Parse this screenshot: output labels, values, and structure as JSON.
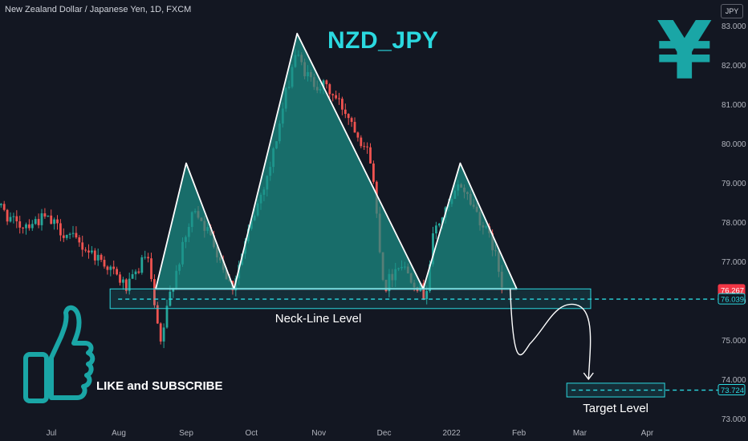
{
  "header": {
    "instrument": "New Zealand Dollar / Japanese Yen, 1D, FXCM",
    "currency_badge": "JPY"
  },
  "overlay": {
    "title": "NZD_JPY",
    "yen_symbol": "¥",
    "like_text": "LIKE and SUBSCRIBE"
  },
  "colors": {
    "background": "#131722",
    "bull": "#26a69a",
    "bear": "#ef5350",
    "pattern_fill": "#1a8f86",
    "accent": "#2bd9e0",
    "current_price_badge": "#f23645"
  },
  "chart_data": {
    "type": "candlestick",
    "title": "NZD_JPY",
    "ylim": [
      73.0,
      83.0
    ],
    "y_ticks": [
      73.0,
      74.0,
      75.0,
      76.0,
      77.0,
      78.0,
      79.0,
      80.0,
      81.0,
      82.0,
      83.0
    ],
    "y_tick_labels": [
      "73.000",
      "74.000",
      "75.000",
      "76.000",
      "77.000",
      "78.000",
      "79.000",
      "80.000",
      "81.000",
      "82.000",
      "83.000"
    ],
    "x_ticks": [
      {
        "label": "Jul",
        "date": "2021-07-01"
      },
      {
        "label": "Aug",
        "date": "2021-08-01"
      },
      {
        "label": "Sep",
        "date": "2021-09-01"
      },
      {
        "label": "Oct",
        "date": "2021-10-01"
      },
      {
        "label": "Nov",
        "date": "2021-11-01"
      },
      {
        "label": "Dec",
        "date": "2021-12-01"
      },
      {
        "label": "2022",
        "date": "2022-01-01"
      },
      {
        "label": "Feb",
        "date": "2022-02-01"
      },
      {
        "label": "Mar",
        "date": "2022-03-01"
      },
      {
        "label": "Apr",
        "date": "2022-04-01"
      }
    ],
    "grid": false,
    "price_path": [
      {
        "date": "2021-06-01",
        "close": 78.8
      },
      {
        "date": "2021-06-15",
        "close": 77.9
      },
      {
        "date": "2021-06-28",
        "close": 78.1
      },
      {
        "date": "2021-07-10",
        "close": 77.6
      },
      {
        "date": "2021-07-25",
        "close": 77.0
      },
      {
        "date": "2021-08-05",
        "close": 76.3
      },
      {
        "date": "2021-08-14",
        "close": 77.2
      },
      {
        "date": "2021-08-20",
        "close": 74.8
      },
      {
        "date": "2021-08-25",
        "close": 76.3
      },
      {
        "date": "2021-09-05",
        "close": 78.4
      },
      {
        "date": "2021-09-15",
        "close": 77.3
      },
      {
        "date": "2021-09-22",
        "close": 76.3
      },
      {
        "date": "2021-09-30",
        "close": 77.8
      },
      {
        "date": "2021-10-10",
        "close": 79.5
      },
      {
        "date": "2021-10-21",
        "close": 82.3
      },
      {
        "date": "2021-10-28",
        "close": 81.6
      },
      {
        "date": "2021-11-05",
        "close": 81.4
      },
      {
        "date": "2021-11-15",
        "close": 80.7
      },
      {
        "date": "2021-11-25",
        "close": 79.6
      },
      {
        "date": "2021-12-01",
        "close": 76.3
      },
      {
        "date": "2021-12-08",
        "close": 77.0
      },
      {
        "date": "2021-12-15",
        "close": 76.5
      },
      {
        "date": "2021-12-20",
        "close": 76.1
      },
      {
        "date": "2021-12-24",
        "close": 77.8
      },
      {
        "date": "2022-01-01",
        "close": 78.5
      },
      {
        "date": "2022-01-05",
        "close": 79.0
      },
      {
        "date": "2022-01-13",
        "close": 78.2
      },
      {
        "date": "2022-01-20",
        "close": 77.4
      },
      {
        "date": "2022-01-25",
        "close": 76.267
      }
    ],
    "pattern": {
      "name": "Head and Shoulders",
      "left_shoulder": {
        "start": {
          "date": "2021-08-18",
          "price": 76.3
        },
        "peak": {
          "date": "2021-09-01",
          "price": 79.5
        },
        "end": {
          "date": "2021-09-23",
          "price": 76.3
        }
      },
      "head": {
        "start": {
          "date": "2021-09-23",
          "price": 76.3
        },
        "peak": {
          "date": "2021-10-22",
          "price": 82.8
        },
        "end": {
          "date": "2021-12-19",
          "price": 76.3
        }
      },
      "right_shoulder": {
        "start": {
          "date": "2021-12-19",
          "price": 76.3
        },
        "peak": {
          "date": "2022-01-05",
          "price": 79.5
        },
        "end": {
          "date": "2022-01-31",
          "price": 76.3
        }
      }
    },
    "neckline": {
      "label": "Neck-Line Level",
      "price": 76.039,
      "zone": [
        75.8,
        76.3
      ],
      "zone_start": "2021-07-28",
      "zone_end": "2022-03-06"
    },
    "target": {
      "label": "Target Level",
      "price": 73.724,
      "zone": [
        73.55,
        73.9
      ],
      "zone_start": "2022-02-23",
      "zone_end": "2022-04-09"
    },
    "projection_path": [
      {
        "date": "2022-01-28",
        "price": 76.3
      },
      {
        "date": "2022-02-06",
        "price": 74.9
      },
      {
        "date": "2022-02-27",
        "price": 75.9
      },
      {
        "date": "2022-03-05",
        "price": 74.0
      }
    ],
    "price_labels": [
      {
        "value": "76.267",
        "kind": "current"
      },
      {
        "value": "76.039",
        "kind": "neckline"
      },
      {
        "value": "73.724",
        "kind": "target"
      }
    ]
  }
}
